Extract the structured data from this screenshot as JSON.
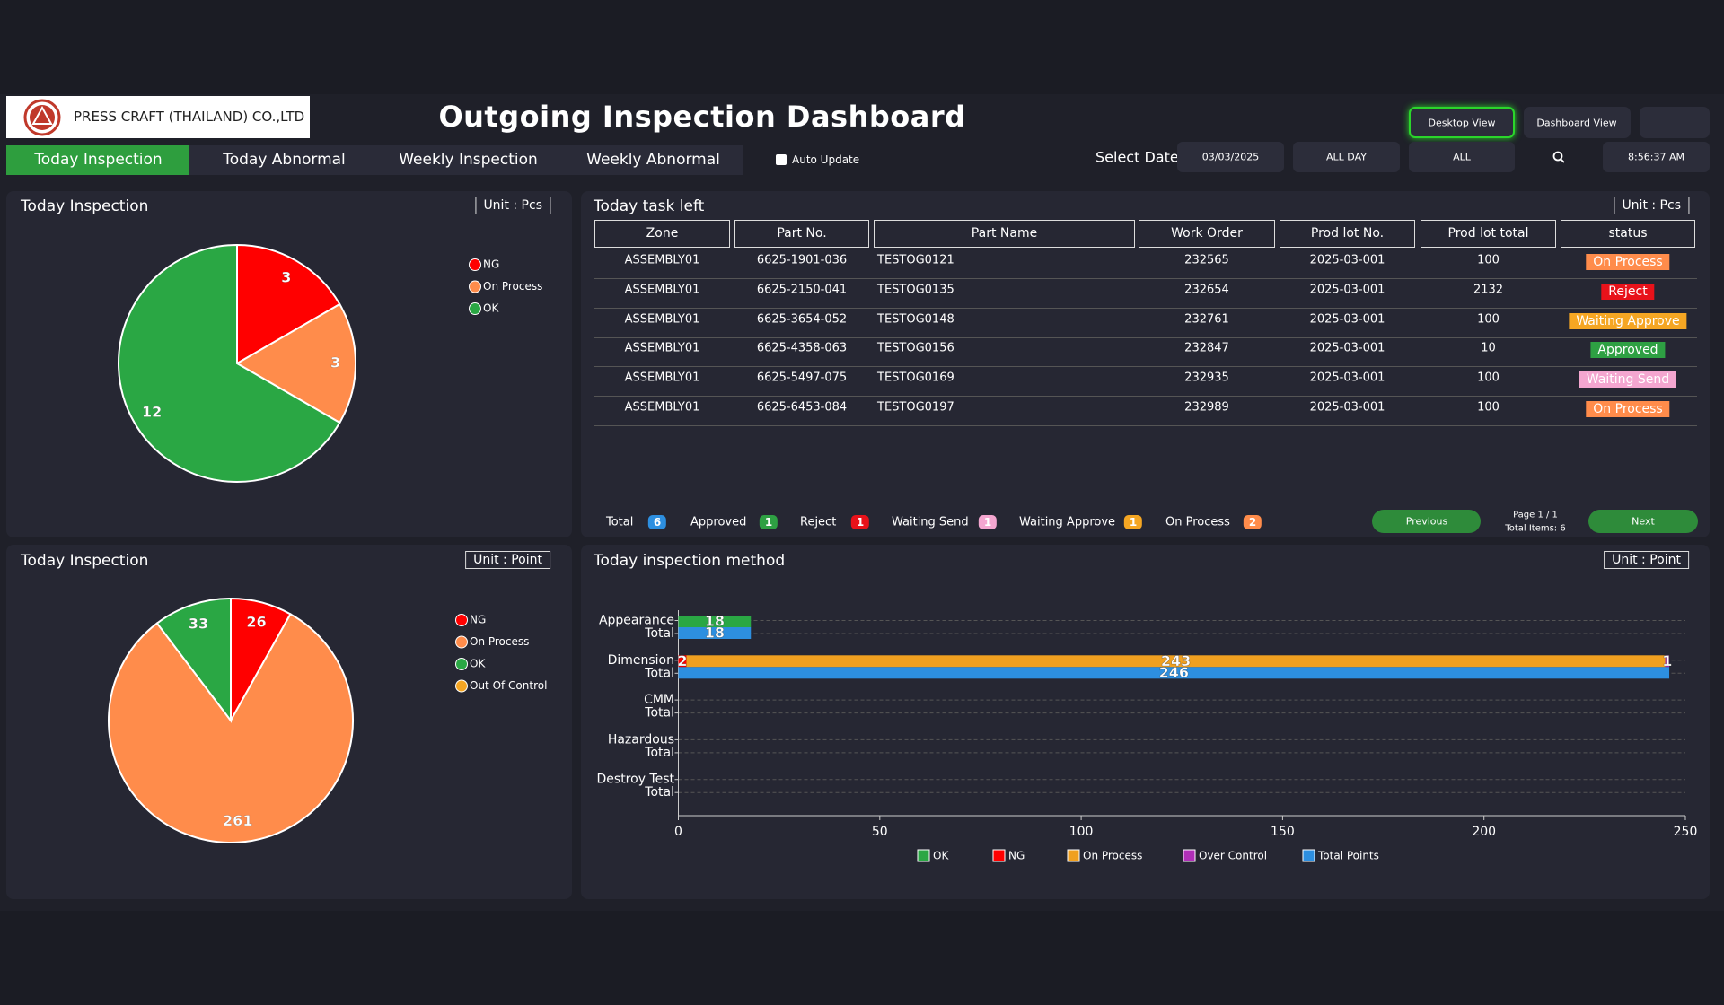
{
  "header": {
    "company": "PRESS CRAFT (THAILAND) CO.,LTD",
    "title": "Outgoing Inspection Dashboard",
    "buttons": [
      "Desktop View",
      "Dashboard View"
    ]
  },
  "tabs": [
    "Today Inspection",
    "Today Abnormal",
    "Weekly Inspection",
    "Weekly Abnormal"
  ],
  "active_tab": 0,
  "auto_update": "Auto Update",
  "filters": {
    "label": "Select Date",
    "date": "03/03/2025",
    "period": "ALL DAY",
    "zone": "ALL",
    "time": "8:56:37 AM"
  },
  "pie_pcs": {
    "type": "pie",
    "title": "Today Inspection",
    "unit": "Unit : Pcs",
    "categories": [
      "NG",
      "On Process",
      "OK"
    ],
    "values": [
      3,
      3,
      12
    ],
    "colors": [
      "#ff0000",
      "#ff8c4b",
      "#2aa744"
    ]
  },
  "pie_point": {
    "type": "pie",
    "title": "Today Inspection",
    "unit": "Unit : Point",
    "categories": [
      "NG",
      "On Process",
      "OK",
      "Out Of Control"
    ],
    "values": [
      26,
      261,
      33,
      0
    ],
    "colors": [
      "#ff0000",
      "#ff8c4b",
      "#2aa744",
      "#f5a623"
    ]
  },
  "task_table": {
    "title": "Today task left",
    "unit": "Unit : Pcs",
    "columns": [
      "Zone",
      "Part No.",
      "Part Name",
      "Work Order",
      "Prod lot No.",
      "Prod lot total",
      "status"
    ],
    "rows": [
      [
        "ASSEMBLY01",
        "6625-1901-036",
        "TESTOG0121",
        232565,
        "2025-03-001",
        100,
        "On Process"
      ],
      [
        "ASSEMBLY01",
        "6625-2150-041",
        "TESTOG0135",
        232654,
        "2025-03-001",
        2132,
        "Reject"
      ],
      [
        "ASSEMBLY01",
        "6625-3654-052",
        "TESTOG0148",
        232761,
        "2025-03-001",
        100,
        "Waiting Approve"
      ],
      [
        "ASSEMBLY01",
        "6625-4358-063",
        "TESTOG0156",
        232847,
        "2025-03-001",
        10,
        "Approved"
      ],
      [
        "ASSEMBLY01",
        "6625-5497-075",
        "TESTOG0169",
        232935,
        "2025-03-001",
        100,
        "Waiting Send"
      ],
      [
        "ASSEMBLY01",
        "6625-6453-084",
        "TESTOG0197",
        232989,
        "2025-03-001",
        100,
        "On Process"
      ]
    ],
    "status_colors": {
      "On Process": "#ff8c4b",
      "Reject": "#e8121a",
      "Waiting Approve": "#f5a623",
      "Approved": "#2ea043",
      "Waiting Send": "#f4a6d0"
    }
  },
  "summary": [
    {
      "label": "Total",
      "count": 6,
      "color": "#2d8fe0"
    },
    {
      "label": "Approved",
      "count": 1,
      "color": "#2ea043"
    },
    {
      "label": "Reject",
      "count": 1,
      "color": "#e8121a"
    },
    {
      "label": "Waiting Send",
      "count": 1,
      "color": "#f4a6d0"
    },
    {
      "label": "Waiting Approve",
      "count": 1,
      "color": "#f5a623"
    },
    {
      "label": "On Process",
      "count": 2,
      "color": "#ff8c4b"
    }
  ],
  "pagination": {
    "previous": "Previous",
    "next": "Next",
    "page": "Page 1 / 1",
    "total_items": "Total Items: 6"
  },
  "method_chart": {
    "type": "bar",
    "orientation": "horizontal",
    "title": "Today inspection method",
    "unit": "Unit : Point",
    "categories": [
      "Appearance",
      "Dimension",
      "CMM",
      "Hazardous",
      "Destroy Test"
    ],
    "sub_label": "Total",
    "series": [
      {
        "name": "OK",
        "color": "#2aa744",
        "stack": "result",
        "values": [
          18,
          0,
          0,
          0,
          0
        ]
      },
      {
        "name": "NG",
        "color": "#ff0000",
        "stack": "result",
        "values": [
          0,
          2,
          0,
          0,
          0
        ]
      },
      {
        "name": "On Process",
        "color": "#f0a020",
        "stack": "result",
        "values": [
          0,
          243,
          0,
          0,
          0
        ]
      },
      {
        "name": "Over Control",
        "color": "#b02fb8",
        "stack": "result",
        "values": [
          0,
          1,
          0,
          0,
          0
        ]
      },
      {
        "name": "Total Points",
        "color": "#2d8fe0",
        "stack": "total",
        "values": [
          18,
          246,
          0,
          0,
          0
        ]
      }
    ],
    "xlim": [
      0,
      250
    ],
    "xticks": [
      0,
      50,
      100,
      150,
      200,
      250
    ],
    "grid": true
  }
}
